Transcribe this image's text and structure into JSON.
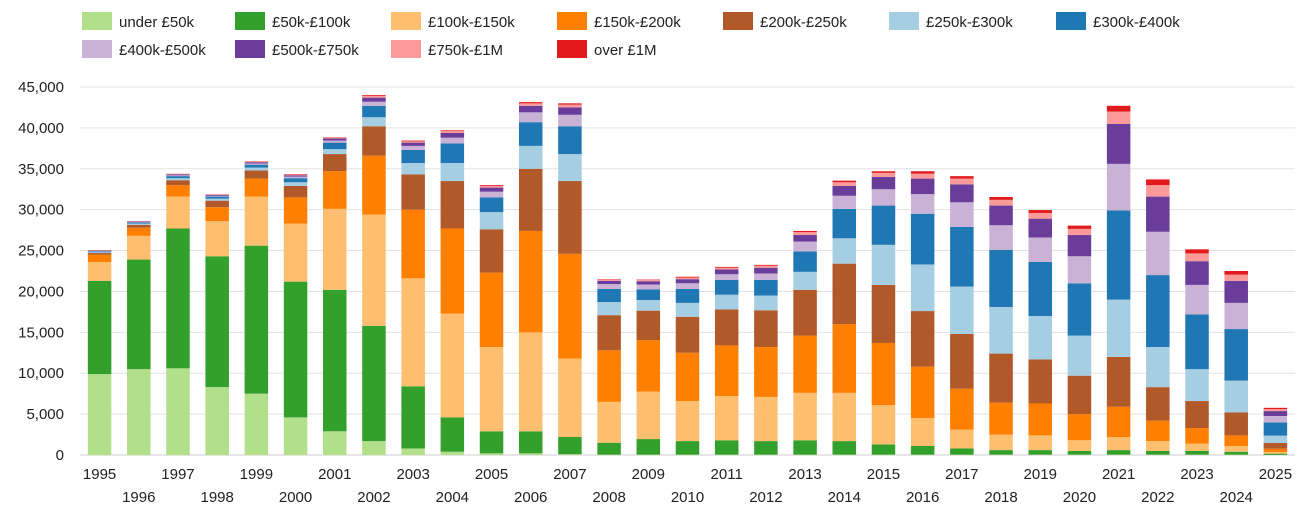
{
  "chart_data": {
    "type": "bar",
    "stacked": true,
    "title": "",
    "xlabel": "",
    "ylabel": "",
    "ylim": [
      0,
      45000
    ],
    "yticks": [
      0,
      5000,
      10000,
      15000,
      20000,
      25000,
      30000,
      35000,
      40000,
      45000
    ],
    "ytick_labels": [
      "0",
      "5,000",
      "10,000",
      "15,000",
      "20,000",
      "25,000",
      "30,000",
      "35,000",
      "40,000",
      "45,000"
    ],
    "grid": true,
    "legend_position": "top",
    "categories": [
      "1995",
      "1996",
      "1997",
      "1998",
      "1999",
      "2000",
      "2001",
      "2002",
      "2003",
      "2004",
      "2005",
      "2006",
      "2007",
      "2008",
      "2009",
      "2010",
      "2011",
      "2012",
      "2013",
      "2014",
      "2015",
      "2016",
      "2017",
      "2018",
      "2019",
      "2020",
      "2021",
      "2022",
      "2023",
      "2024",
      "2025"
    ],
    "series": [
      {
        "name": "under £50k",
        "color": "#b2df8a",
        "values": [
          9900,
          10500,
          10600,
          8300,
          7500,
          4600,
          2900,
          1700,
          800,
          400,
          200,
          200,
          100,
          50,
          50,
          50,
          50,
          50,
          50,
          50,
          50,
          50,
          50,
          50,
          50,
          50,
          50,
          50,
          50,
          50,
          20
        ]
      },
      {
        "name": "£50k-£100k",
        "color": "#33a02c",
        "values": [
          11400,
          13400,
          17100,
          16000,
          18100,
          16600,
          17300,
          14100,
          7600,
          4200,
          2700,
          2700,
          2100,
          1450,
          1900,
          1650,
          1750,
          1650,
          1750,
          1650,
          1250,
          1050,
          750,
          550,
          550,
          450,
          550,
          450,
          450,
          350,
          150
        ]
      },
      {
        "name": "£100k-£150k",
        "color": "#fdbf6f",
        "values": [
          2300,
          2900,
          3900,
          4300,
          6000,
          7100,
          9900,
          13600,
          13200,
          12700,
          10300,
          12100,
          9600,
          5000,
          5800,
          4900,
          5400,
          5400,
          5800,
          5900,
          4800,
          3400,
          2300,
          1900,
          1800,
          1300,
          1600,
          1200,
          900,
          700,
          200
        ]
      },
      {
        "name": "£150k-£200k",
        "color": "#ff7f00",
        "values": [
          900,
          1000,
          1400,
          1700,
          2200,
          3200,
          4600,
          7200,
          8400,
          10400,
          9100,
          12400,
          12800,
          6300,
          6300,
          5900,
          6200,
          6100,
          7000,
          8400,
          7600,
          6300,
          5000,
          3900,
          3900,
          3200,
          3700,
          2500,
          1900,
          1300,
          400
        ]
      },
      {
        "name": "£200k-£250k",
        "color": "#b15928",
        "values": [
          200,
          350,
          600,
          800,
          1000,
          1400,
          2100,
          3600,
          4300,
          5800,
          5300,
          7600,
          8900,
          4300,
          3600,
          4400,
          4400,
          4500,
          5600,
          7400,
          7100,
          6800,
          6700,
          6000,
          5400,
          4700,
          6100,
          4100,
          3300,
          2800,
          700
        ]
      },
      {
        "name": "£250k-£300k",
        "color": "#a6cee3",
        "values": [
          100,
          150,
          250,
          250,
          350,
          450,
          600,
          1100,
          1400,
          2200,
          2100,
          2800,
          3300,
          1600,
          1300,
          1700,
          1800,
          1800,
          2200,
          3100,
          4900,
          5700,
          5800,
          5700,
          5300,
          4900,
          7000,
          4900,
          3900,
          3900,
          900
        ]
      },
      {
        "name": "£300k-£400k",
        "color": "#1f78b4",
        "values": [
          100,
          150,
          250,
          250,
          350,
          500,
          800,
          1400,
          1600,
          2400,
          1800,
          2900,
          3400,
          1600,
          1300,
          1700,
          1800,
          1900,
          2500,
          3600,
          4800,
          6200,
          7300,
          7000,
          6600,
          6400,
          10900,
          8800,
          6700,
          6300,
          1600
        ]
      },
      {
        "name": "£400k-£500k",
        "color": "#cab2d6",
        "values": [
          50,
          50,
          100,
          100,
          150,
          200,
          250,
          500,
          500,
          700,
          700,
          1200,
          1400,
          600,
          600,
          700,
          700,
          800,
          1200,
          1600,
          2000,
          2400,
          3000,
          3000,
          3000,
          3300,
          5700,
          5300,
          3600,
          3200,
          800
        ]
      },
      {
        "name": "£500k-£750k",
        "color": "#6a3d9a",
        "values": [
          50,
          50,
          100,
          100,
          150,
          150,
          250,
          500,
          400,
          600,
          500,
          800,
          900,
          400,
          400,
          500,
          600,
          700,
          800,
          1200,
          1500,
          1900,
          2200,
          2400,
          2300,
          2600,
          4900,
          4300,
          2900,
          2700,
          600
        ]
      },
      {
        "name": "£750k-£1M",
        "color": "#fb9a99",
        "values": [
          30,
          30,
          50,
          50,
          50,
          100,
          100,
          200,
          150,
          200,
          200,
          300,
          350,
          150,
          150,
          200,
          200,
          250,
          350,
          450,
          500,
          600,
          700,
          700,
          700,
          750,
          1500,
          1400,
          950,
          750,
          250
        ]
      },
      {
        "name": "over £1M",
        "color": "#e31a1c",
        "values": [
          20,
          20,
          30,
          30,
          50,
          50,
          50,
          100,
          100,
          100,
          100,
          150,
          150,
          50,
          50,
          100,
          100,
          100,
          150,
          200,
          200,
          300,
          300,
          350,
          350,
          400,
          700,
          700,
          500,
          450,
          150
        ]
      }
    ]
  }
}
